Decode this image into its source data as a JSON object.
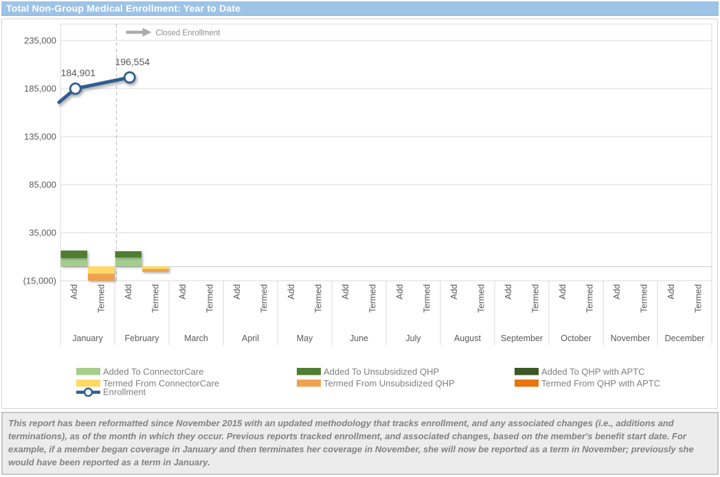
{
  "title_bar": {
    "title": "Total Non-Group Medical Enrollment: Year to Date",
    "bg_color": "#9DC3E6"
  },
  "footer": {
    "text": "This report has been reformatted since November 2015 with an updated methodology that tracks enrollment, and any associated changes (i.e., additions and terminations), as of the month in which they occur.  Previous reports tracked enrollment, and associated changes, based on the member's benefit start date.  For example, if a member began coverage in January and then terminates her coverage in November, she will now be reported as a term in November; previously she would have been reported as a term in January."
  },
  "chart_data": {
    "type": "combo",
    "bar_type": "stacked-bar",
    "title": "Total Non-Group Medical Enrollment: Year to Date",
    "months": [
      "January",
      "February",
      "March",
      "April",
      "May",
      "June",
      "July",
      "August",
      "September",
      "October",
      "November",
      "December"
    ],
    "sub_categories": [
      "Add",
      "Termed"
    ],
    "y_axis": {
      "tick_labels": [
        "235,000",
        "185,000",
        "135,000",
        "85,000",
        "35,000",
        "(15,000)"
      ],
      "tick_values": [
        235000,
        185000,
        135000,
        85000,
        35000,
        -15000
      ],
      "min": -15000,
      "max": 252000,
      "grid": true
    },
    "annotation": {
      "label": "Closed Enrollment",
      "divider_after_month": "January",
      "divider_style": "dashed",
      "arrow_color": "#ABABAB",
      "text_color": "#8C8C8C"
    },
    "bar_series": [
      {
        "name": "Added To ConnectorCare",
        "sub": "Add",
        "color": "#A5CE8D",
        "values": {
          "January": 8600,
          "February": 9300
        }
      },
      {
        "name": "Added To Unsubsidized QHP",
        "sub": "Add",
        "color": "#4F7D31",
        "values": {
          "January": 7800,
          "February": 6400
        }
      },
      {
        "name": "Added To QHP with APTC",
        "sub": "Add",
        "color": "#3A5724",
        "values": {}
      },
      {
        "name": "Termed From ConnectorCare",
        "sub": "Termed",
        "color": "#FFD965",
        "values": {
          "January": -7900,
          "February": -2900
        }
      },
      {
        "name": "Termed From Unsubsidized QHP",
        "sub": "Termed",
        "color": "#F0A14F",
        "values": {
          "January": -7100,
          "February": -2900
        }
      },
      {
        "name": "Termed From QHP with APTC",
        "sub": "Termed",
        "color": "#E8750E",
        "values": {}
      }
    ],
    "line_series": {
      "name": "Enrollment",
      "color": "#2E5E8E",
      "edge_value": 170700,
      "points": [
        {
          "month": "January",
          "value": 184901,
          "label": "184,901"
        },
        {
          "month": "February",
          "value": 196554,
          "label": "196,554"
        }
      ]
    },
    "legend": {
      "text_color": "#7F7F7F",
      "columns": [
        {
          "items": [
            {
              "label": "Added To ConnectorCare",
              "swatch": "box",
              "color": "#A5CE8D"
            },
            {
              "label": "Termed From ConnectorCare",
              "swatch": "box",
              "color": "#FFD965"
            },
            {
              "label": "Enrollment",
              "swatch": "line-marker",
              "color": "#2E5E8E"
            }
          ]
        },
        {
          "items": [
            {
              "label": "Added To Unsubsidized QHP",
              "swatch": "box",
              "color": "#4F7D31"
            },
            {
              "label": "Termed From Unsubsidized QHP",
              "swatch": "box",
              "color": "#F0A14F"
            }
          ]
        },
        {
          "items": [
            {
              "label": "Added To QHP with APTC",
              "swatch": "box",
              "color": "#3A5724"
            },
            {
              "label": "Termed From QHP with APTC",
              "swatch": "box",
              "color": "#E8750E"
            }
          ]
        }
      ]
    }
  }
}
